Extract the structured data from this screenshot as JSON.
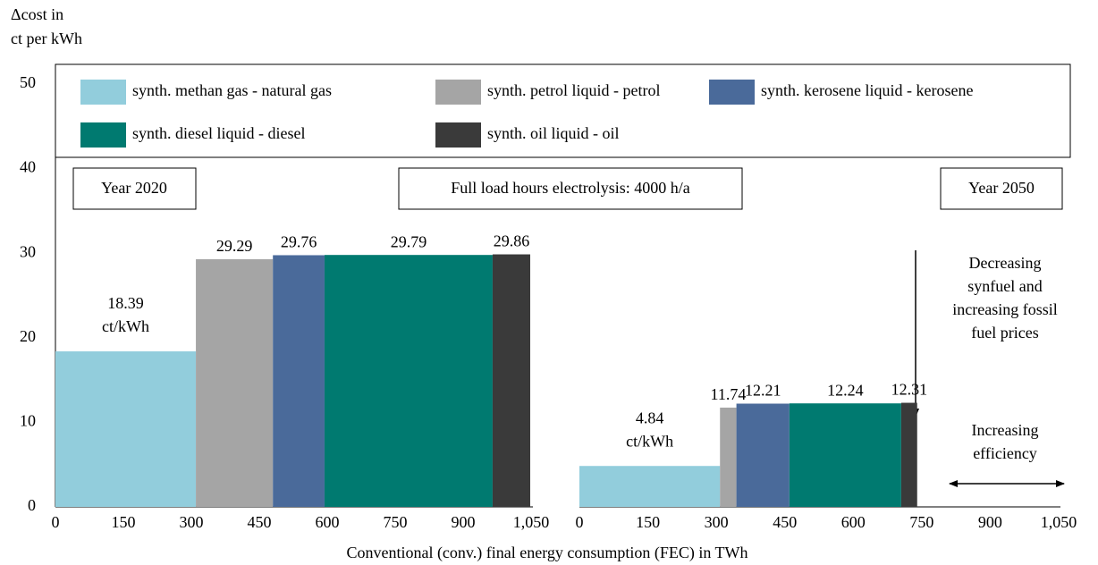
{
  "chart_data": {
    "type": "bar",
    "ylabel": [
      "Δcost in",
      "ct per kWh"
    ],
    "xlabel": "Conventional  (conv.) final energy consumption (FEC) in TWh",
    "ylim": [
      0,
      50
    ],
    "yticks": [
      0,
      10,
      20,
      30,
      40,
      50
    ],
    "series": [
      {
        "name": "synth. methan gas - natural gas",
        "color": "#92cddc"
      },
      {
        "name": "synth. petrol liquid - petrol",
        "color": "#a5a5a5"
      },
      {
        "name": "synth. kerosene liquid - kerosene",
        "color": "#4a6a9a"
      },
      {
        "name": "synth. diesel liquid - diesel",
        "color": "#007a70"
      },
      {
        "name": "synth. oil liquid - oil",
        "color": "#3a3a3a"
      }
    ],
    "panels": [
      {
        "title": "Year 2020",
        "xlim": [
          0,
          1050
        ],
        "xticks": [
          0,
          150,
          300,
          450,
          600,
          750,
          900,
          {
            "value": 1050,
            "label": "1,050"
          }
        ],
        "widths": [
          310,
          170,
          114,
          371,
          83
        ],
        "values": [
          18.39,
          29.29,
          29.76,
          29.79,
          29.86
        ],
        "unit_label": "ct/kWh"
      },
      {
        "title": "Year 2050",
        "xlim": [
          0,
          1050
        ],
        "xticks": [
          0,
          150,
          300,
          450,
          600,
          750,
          900,
          {
            "value": 1050,
            "label": "1,050"
          }
        ],
        "widths": [
          308,
          36,
          116,
          245,
          35
        ],
        "values": [
          4.84,
          11.74,
          12.21,
          12.24,
          12.31
        ],
        "unit_label": "ct/kWh"
      }
    ],
    "annotations": {
      "center_box": "Full load hours electrolysis: 4000 h/a",
      "price_note": [
        "Decreasing",
        "synfuel and",
        "increasing fossil",
        "fuel prices"
      ],
      "efficiency_note": [
        "Increasing",
        "efficiency"
      ]
    }
  }
}
